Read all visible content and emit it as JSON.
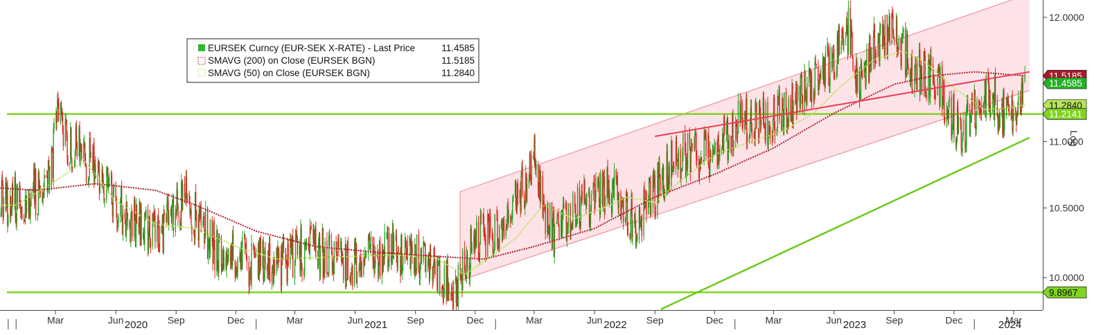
{
  "chart_data": {
    "type": "line",
    "scale": "log",
    "axis_label": "Log",
    "y_ticks": [
      "12.0000",
      "11.0000",
      "10.5000",
      "10.0000"
    ],
    "x_month_ticks": [
      "Mar",
      "Jun",
      "Sep",
      "Dec",
      "Mar",
      "Jun",
      "Sep",
      "Dec",
      "Mar",
      "Jun",
      "Sep",
      "Dec",
      "Mar",
      "Jun",
      "Sep",
      "Dec",
      "Mar"
    ],
    "x_year_labels": [
      "2020",
      "2021",
      "2022",
      "2023",
      "2024"
    ],
    "legend": {
      "series": [
        {
          "name": "EURSEK Curncy (EUR-SEK X-RATE) - Last Price",
          "value": "11.4585",
          "color": "#2eb82e",
          "style": "candle"
        },
        {
          "name": "SMAVG (200)  on Close (EURSEK BGN)",
          "value": "11.5185",
          "color": "#a8182a",
          "style": "dotted"
        },
        {
          "name": "SMAVG (50)  on Close (EURSEK BGN)",
          "value": "11.2840",
          "color": "#b6e35a",
          "style": "dotted"
        }
      ]
    },
    "badges": [
      {
        "value": "11.5185",
        "bg": "#a8182a",
        "fg": "#ffffff"
      },
      {
        "value": "11.4585",
        "bg": "#22b024",
        "fg": "#ffffff"
      },
      {
        "value": "11.2840",
        "bg": "#b6e35a",
        "fg": "#111111"
      },
      {
        "value": "11.2141",
        "bg": "#7fd41f",
        "fg": "#ffffff"
      },
      {
        "value": "9.8967",
        "bg": "#7fd41f",
        "fg": "#111111"
      }
    ],
    "price_anchors": [
      [
        "2019-11-01",
        10.46
      ],
      [
        "2019-12-01",
        10.52
      ],
      [
        "2020-01-01",
        10.55
      ],
      [
        "2020-02-01",
        10.62
      ],
      [
        "2020-02-24",
        10.78
      ],
      [
        "2020-03-06",
        11.28
      ],
      [
        "2020-03-17",
        11.0
      ],
      [
        "2020-04-01",
        10.95
      ],
      [
        "2020-05-01",
        10.8
      ],
      [
        "2020-06-01",
        10.52
      ],
      [
        "2020-07-01",
        10.4
      ],
      [
        "2020-08-01",
        10.3
      ],
      [
        "2020-09-07",
        10.48
      ],
      [
        "2020-09-15",
        10.6
      ],
      [
        "2020-10-01",
        10.42
      ],
      [
        "2020-11-01",
        10.2
      ],
      [
        "2020-12-01",
        10.14
      ],
      [
        "2021-01-01",
        10.1
      ],
      [
        "2021-02-01",
        10.08
      ],
      [
        "2021-03-01",
        10.18
      ],
      [
        "2021-04-01",
        10.2
      ],
      [
        "2021-05-01",
        10.14
      ],
      [
        "2021-06-01",
        10.1
      ],
      [
        "2021-07-01",
        10.18
      ],
      [
        "2021-08-01",
        10.2
      ],
      [
        "2021-09-01",
        10.16
      ],
      [
        "2021-10-01",
        10.06
      ],
      [
        "2021-11-01",
        9.92
      ],
      [
        "2021-12-01",
        10.26
      ],
      [
        "2022-01-01",
        10.3
      ],
      [
        "2022-02-01",
        10.52
      ],
      [
        "2022-03-04",
        10.88
      ],
      [
        "2022-03-15",
        10.48
      ],
      [
        "2022-04-01",
        10.3
      ],
      [
        "2022-05-01",
        10.48
      ],
      [
        "2022-06-01",
        10.58
      ],
      [
        "2022-07-01",
        10.65
      ],
      [
        "2022-08-01",
        10.38
      ],
      [
        "2022-09-01",
        10.62
      ],
      [
        "2022-10-01",
        10.88
      ],
      [
        "2022-11-01",
        10.9
      ],
      [
        "2022-12-01",
        10.92
      ],
      [
        "2023-01-01",
        11.12
      ],
      [
        "2023-02-01",
        11.2
      ],
      [
        "2023-03-01",
        11.15
      ],
      [
        "2023-04-01",
        11.3
      ],
      [
        "2023-05-01",
        11.45
      ],
      [
        "2023-06-01",
        11.68
      ],
      [
        "2023-06-25",
        11.93
      ],
      [
        "2023-07-01",
        11.4
      ],
      [
        "2023-08-01",
        11.75
      ],
      [
        "2023-09-01",
        11.9
      ],
      [
        "2023-10-01",
        11.55
      ],
      [
        "2023-11-01",
        11.52
      ],
      [
        "2023-12-01",
        11.18
      ],
      [
        "2023-12-15",
        11.05
      ],
      [
        "2024-01-01",
        11.22
      ],
      [
        "2024-01-25",
        11.38
      ],
      [
        "2024-02-15",
        11.22
      ],
      [
        "2024-03-07",
        11.2841
      ],
      [
        "2024-03-18",
        11.4585
      ]
    ],
    "sma50_anchors": [
      [
        "2019-11-01",
        10.52
      ],
      [
        "2020-01-01",
        10.52
      ],
      [
        "2020-03-01",
        10.7
      ],
      [
        "2020-04-15",
        10.85
      ],
      [
        "2020-06-01",
        10.55
      ],
      [
        "2020-08-01",
        10.38
      ],
      [
        "2020-10-01",
        10.35
      ],
      [
        "2020-12-01",
        10.22
      ],
      [
        "2021-02-01",
        10.13
      ],
      [
        "2021-04-01",
        10.14
      ],
      [
        "2021-06-01",
        10.15
      ],
      [
        "2021-08-01",
        10.16
      ],
      [
        "2021-10-01",
        10.14
      ],
      [
        "2021-11-15",
        10.02
      ],
      [
        "2021-12-20",
        10.13
      ],
      [
        "2022-02-01",
        10.28
      ],
      [
        "2022-03-15",
        10.52
      ],
      [
        "2022-05-01",
        10.42
      ],
      [
        "2022-06-15",
        10.5
      ],
      [
        "2022-07-20",
        10.58
      ],
      [
        "2022-09-01",
        10.54
      ],
      [
        "2022-10-15",
        10.72
      ],
      [
        "2022-12-01",
        10.9
      ],
      [
        "2023-01-15",
        10.98
      ],
      [
        "2023-03-15",
        11.08
      ],
      [
        "2023-05-01",
        11.22
      ],
      [
        "2023-06-15",
        11.45
      ],
      [
        "2023-08-01",
        11.65
      ],
      [
        "2023-09-15",
        11.72
      ],
      [
        "2023-10-20",
        11.62
      ],
      [
        "2023-12-01",
        11.42
      ],
      [
        "2024-01-15",
        11.25
      ],
      [
        "2024-02-20",
        11.26
      ],
      [
        "2024-03-18",
        11.284
      ]
    ],
    "sma200_anchors": [
      [
        "2019-11-01",
        10.66
      ],
      [
        "2020-02-01",
        10.63
      ],
      [
        "2020-05-01",
        10.68
      ],
      [
        "2020-08-01",
        10.63
      ],
      [
        "2020-10-01",
        10.52
      ],
      [
        "2021-01-01",
        10.33
      ],
      [
        "2021-04-01",
        10.22
      ],
      [
        "2021-07-01",
        10.18
      ],
      [
        "2021-10-01",
        10.15
      ],
      [
        "2021-12-15",
        10.13
      ],
      [
        "2022-03-01",
        10.22
      ],
      [
        "2022-06-01",
        10.35
      ],
      [
        "2022-09-01",
        10.58
      ],
      [
        "2022-12-01",
        10.75
      ],
      [
        "2023-03-01",
        10.95
      ],
      [
        "2023-06-01",
        11.22
      ],
      [
        "2023-09-01",
        11.45
      ],
      [
        "2023-11-01",
        11.52
      ],
      [
        "2024-01-01",
        11.55
      ],
      [
        "2024-03-18",
        11.5185
      ]
    ],
    "h_support": [
      11.2141,
      9.8967
    ],
    "channel_lower": [
      [
        "2021-11-08",
        9.98
      ],
      [
        "2024-03-25",
        11.4
      ]
    ],
    "channel_upper": [
      [
        "2021-11-08",
        10.62
      ],
      [
        "2024-03-25",
        12.2
      ]
    ],
    "resistance_line": [
      [
        "2022-09-01",
        11.04
      ],
      [
        "2024-03-25",
        11.55
      ]
    ],
    "uptrend_line": [
      [
        "2022-09-10",
        9.78
      ],
      [
        "2024-03-25",
        11.03
      ]
    ]
  }
}
